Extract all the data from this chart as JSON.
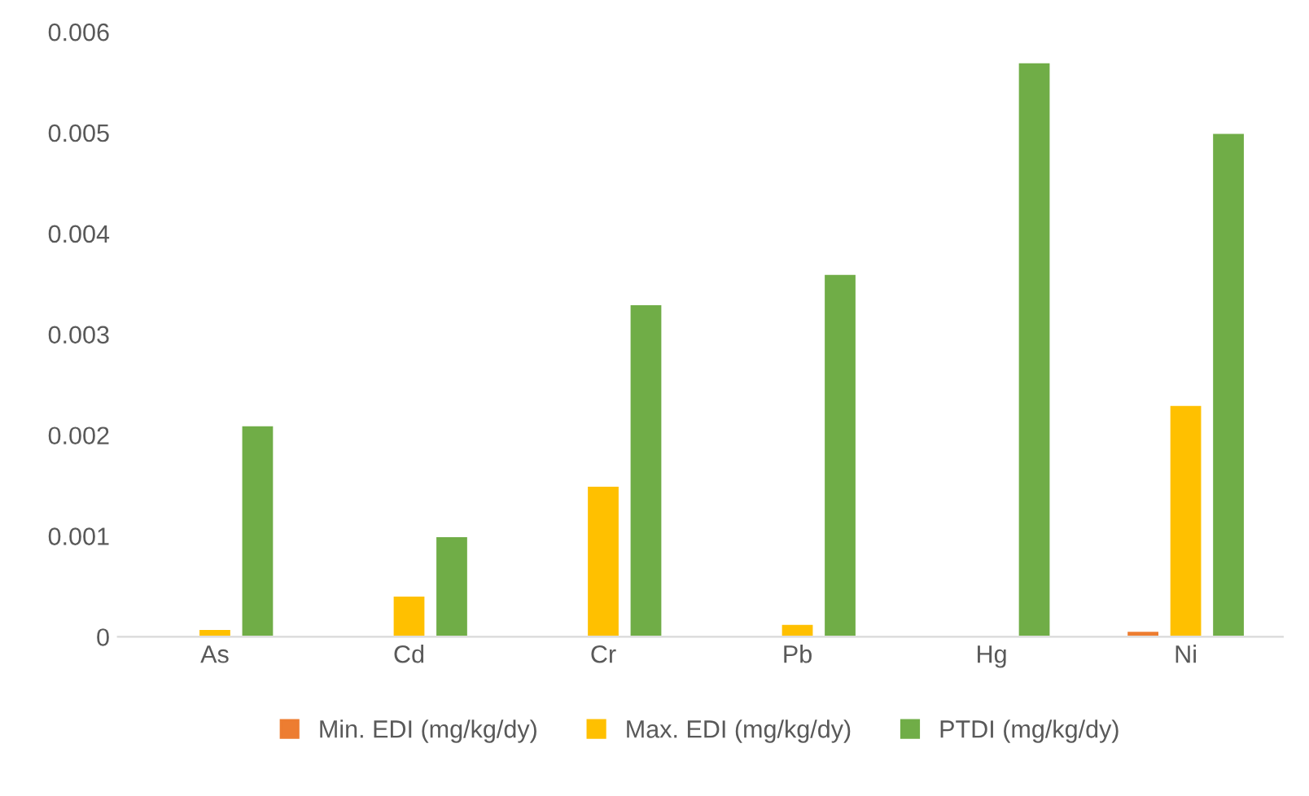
{
  "chart_data": {
    "type": "bar",
    "categories": [
      "As",
      "Cd",
      "Cr",
      "Pb",
      "Hg",
      "Ni"
    ],
    "series": [
      {
        "name": "Min. EDI (mg/kg/dy)",
        "color": "#ed7d31",
        "values": [
          null,
          null,
          null,
          null,
          null,
          6e-05
        ]
      },
      {
        "name": "Max. EDI (mg/kg/dy)",
        "color": "#ffc000",
        "values": [
          8e-05,
          0.00041,
          0.0015,
          0.00013,
          null,
          0.0023
        ]
      },
      {
        "name": "PTDI (mg/kg/dy)",
        "color": "#70ad47",
        "values": [
          0.0021,
          0.001,
          0.0033,
          0.0036,
          0.0057,
          0.005
        ]
      }
    ],
    "ylim": [
      0,
      0.006
    ],
    "yticks": [
      0,
      0.001,
      0.002,
      0.003,
      0.004,
      0.005,
      0.006
    ],
    "grid": false,
    "legend": "bottom"
  }
}
